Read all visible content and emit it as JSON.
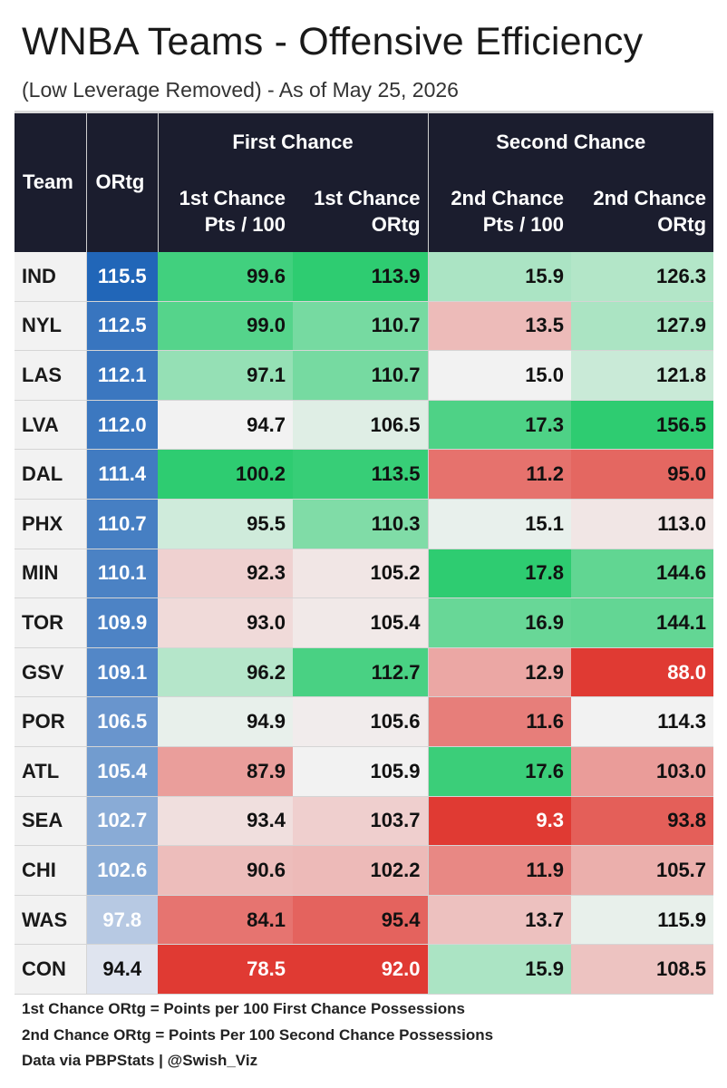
{
  "title": "WNBA Teams - Offensive Efficiency",
  "subtitle": "(Low Leverage Removed) - As of May 25, 2026",
  "chart_data": {
    "type": "table",
    "header": {
      "team": "Team",
      "ortg": "ORtg",
      "groups": [
        "First Chance",
        "Second Chance"
      ],
      "columns": [
        [
          "1st Chance",
          "Pts / 100"
        ],
        [
          "1st Chance",
          "ORtg"
        ],
        [
          "2nd Chance",
          "Pts / 100"
        ],
        [
          "2nd Chance",
          "ORtg"
        ]
      ]
    },
    "rows": [
      {
        "team": "IND",
        "ortg": "115.5",
        "fc_pts": "99.6",
        "fc_ortg": "113.9",
        "sc_pts": "15.9",
        "sc_ortg": "126.3"
      },
      {
        "team": "NYL",
        "ortg": "112.5",
        "fc_pts": "99.0",
        "fc_ortg": "110.7",
        "sc_pts": "13.5",
        "sc_ortg": "127.9"
      },
      {
        "team": "LAS",
        "ortg": "112.1",
        "fc_pts": "97.1",
        "fc_ortg": "110.7",
        "sc_pts": "15.0",
        "sc_ortg": "121.8"
      },
      {
        "team": "LVA",
        "ortg": "112.0",
        "fc_pts": "94.7",
        "fc_ortg": "106.5",
        "sc_pts": "17.3",
        "sc_ortg": "156.5"
      },
      {
        "team": "DAL",
        "ortg": "111.4",
        "fc_pts": "100.2",
        "fc_ortg": "113.5",
        "sc_pts": "11.2",
        "sc_ortg": "95.0"
      },
      {
        "team": "PHX",
        "ortg": "110.7",
        "fc_pts": "95.5",
        "fc_ortg": "110.3",
        "sc_pts": "15.1",
        "sc_ortg": "113.0"
      },
      {
        "team": "MIN",
        "ortg": "110.1",
        "fc_pts": "92.3",
        "fc_ortg": "105.2",
        "sc_pts": "17.8",
        "sc_ortg": "144.6"
      },
      {
        "team": "TOR",
        "ortg": "109.9",
        "fc_pts": "93.0",
        "fc_ortg": "105.4",
        "sc_pts": "16.9",
        "sc_ortg": "144.1"
      },
      {
        "team": "GSV",
        "ortg": "109.1",
        "fc_pts": "96.2",
        "fc_ortg": "112.7",
        "sc_pts": "12.9",
        "sc_ortg": "88.0"
      },
      {
        "team": "POR",
        "ortg": "106.5",
        "fc_pts": "94.9",
        "fc_ortg": "105.6",
        "sc_pts": "11.6",
        "sc_ortg": "114.3"
      },
      {
        "team": "ATL",
        "ortg": "105.4",
        "fc_pts": "87.9",
        "fc_ortg": "105.9",
        "sc_pts": "17.6",
        "sc_ortg": "103.0"
      },
      {
        "team": "SEA",
        "ortg": "102.7",
        "fc_pts": "93.4",
        "fc_ortg": "103.7",
        "sc_pts": "9.3",
        "sc_ortg": "93.8"
      },
      {
        "team": "CHI",
        "ortg": "102.6",
        "fc_pts": "90.6",
        "fc_ortg": "102.2",
        "sc_pts": "11.9",
        "sc_ortg": "105.7"
      },
      {
        "team": "WAS",
        "ortg": "97.8",
        "fc_pts": "84.1",
        "fc_ortg": "95.4",
        "sc_pts": "13.7",
        "sc_ortg": "115.9"
      },
      {
        "team": "CON",
        "ortg": "94.4",
        "fc_pts": "78.5",
        "fc_ortg": "92.0",
        "sc_pts": "15.9",
        "sc_ortg": "108.5"
      }
    ],
    "colors": {
      "ortg_high": "#2166b8",
      "ortg_low": "#dfe4ef",
      "good": "#2ecc71",
      "mid": "#f2f2f2",
      "bad": "#e03a33"
    }
  },
  "footer": [
    "1st Chance ORtg = Points per 100 First Chance Possessions",
    "2nd Chance ORtg = Points Per 100 Second Chance Possessions",
    "Data via PBPStats | @Swish_Viz"
  ]
}
